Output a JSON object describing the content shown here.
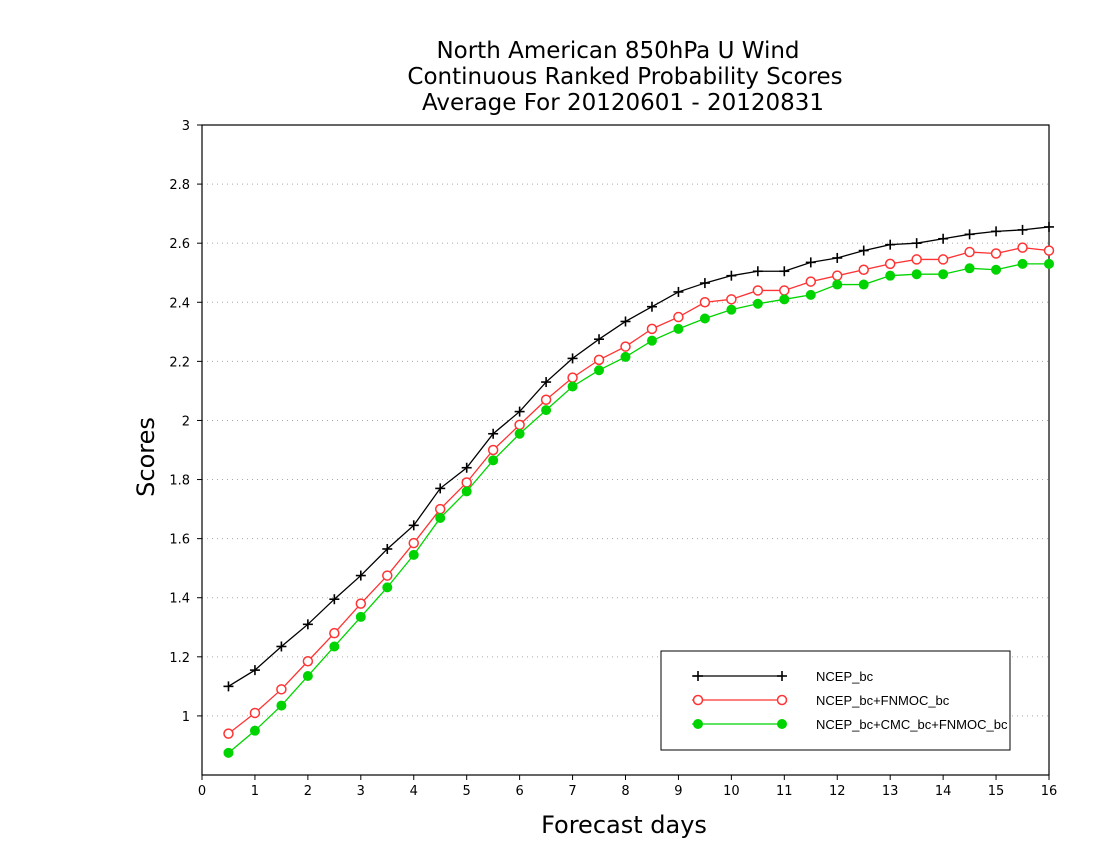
{
  "chart_data": {
    "type": "line",
    "title": [
      "North American 850hPa U Wind",
      "Continuous Ranked Probability Scores",
      "Average For 20120601 - 20120831"
    ],
    "xlabel": "Forecast days",
    "ylabel": "Scores",
    "xlim": [
      0,
      16
    ],
    "ylim": [
      0.8,
      3.0
    ],
    "xticks": [
      "0",
      "1",
      "2",
      "3",
      "4",
      "5",
      "6",
      "7",
      "8",
      "9",
      "10",
      "11",
      "12",
      "13",
      "14",
      "15",
      "16"
    ],
    "yticks": [
      "1",
      "1.2",
      "1.4",
      "1.6",
      "1.8",
      "2",
      "2.2",
      "2.4",
      "2.6",
      "2.8",
      "3"
    ],
    "grid": "horizontal dotted",
    "legend_position": "bottom-right",
    "x": [
      0.5,
      1,
      1.5,
      2,
      2.5,
      3,
      3.5,
      4,
      4.5,
      5,
      5.5,
      6,
      6.5,
      7,
      7.5,
      8,
      8.5,
      9,
      9.5,
      10,
      10.5,
      11,
      11.5,
      12,
      12.5,
      13,
      13.5,
      14,
      14.5,
      15,
      15.5,
      16
    ],
    "series": [
      {
        "name": "NCEP_bc",
        "color": "#000000",
        "marker": "plus",
        "values": [
          1.1,
          1.155,
          1.235,
          1.31,
          1.395,
          1.475,
          1.565,
          1.645,
          1.77,
          1.84,
          1.955,
          2.03,
          2.13,
          2.21,
          2.275,
          2.335,
          2.385,
          2.435,
          2.465,
          2.49,
          2.505,
          2.505,
          2.535,
          2.55,
          2.575,
          2.595,
          2.6,
          2.615,
          2.63,
          2.64,
          2.645,
          2.655
        ]
      },
      {
        "name": "NCEP_bc+FNMOC_bc",
        "color": "#ff3333",
        "marker": "open-circle",
        "values": [
          0.94,
          1.01,
          1.09,
          1.185,
          1.28,
          1.38,
          1.475,
          1.585,
          1.7,
          1.79,
          1.9,
          1.985,
          2.07,
          2.145,
          2.205,
          2.25,
          2.31,
          2.35,
          2.4,
          2.41,
          2.44,
          2.44,
          2.47,
          2.49,
          2.51,
          2.53,
          2.545,
          2.545,
          2.57,
          2.565,
          2.585,
          2.575
        ]
      },
      {
        "name": "NCEP_bc+CMC_bc+FNMOC_bc",
        "color": "#00d400",
        "marker": "filled-circle",
        "values": [
          0.875,
          0.95,
          1.035,
          1.135,
          1.235,
          1.335,
          1.435,
          1.545,
          1.67,
          1.76,
          1.865,
          1.955,
          2.035,
          2.115,
          2.17,
          2.215,
          2.27,
          2.31,
          2.345,
          2.375,
          2.395,
          2.41,
          2.425,
          2.46,
          2.46,
          2.49,
          2.495,
          2.495,
          2.515,
          2.51,
          2.53,
          2.53
        ]
      }
    ]
  }
}
